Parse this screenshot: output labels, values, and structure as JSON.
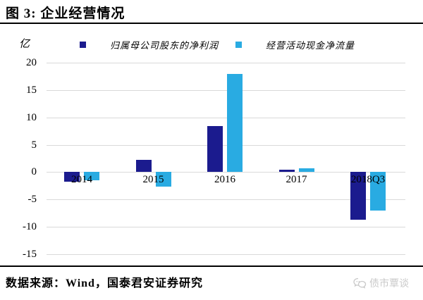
{
  "header": {
    "title": "图 3: 企业经营情况"
  },
  "chart": {
    "unit_label": "亿",
    "legend": [
      {
        "label": "归属母公司股东的净利润",
        "color": "#1B1B8E"
      },
      {
        "label": "经营活动现金净流量",
        "color": "#29ABE2"
      }
    ],
    "gridline_color": "#d9d9d9"
  },
  "chart_data": {
    "type": "bar",
    "title": "企业经营情况",
    "ylabel": "亿",
    "categories": [
      "2014",
      "2015",
      "2016",
      "2017",
      "2018Q3"
    ],
    "series": [
      {
        "name": "归属母公司股东的净利润",
        "color": "#1B1B8E",
        "values": [
          -1.8,
          2.2,
          8.4,
          0.4,
          -8.7
        ]
      },
      {
        "name": "经营活动现金净流量",
        "color": "#29ABE2",
        "values": [
          -1.5,
          -2.6,
          18.0,
          0.7,
          -7.0
        ]
      }
    ],
    "ylim": [
      -15,
      20
    ],
    "yticks": [
      20,
      15,
      10,
      5,
      0,
      -5,
      -10,
      -15
    ],
    "grid": true,
    "legend_position": "top"
  },
  "footer": {
    "source": "数据来源：Wind，国泰君安证券研究",
    "watermark": "债市覃谈"
  }
}
